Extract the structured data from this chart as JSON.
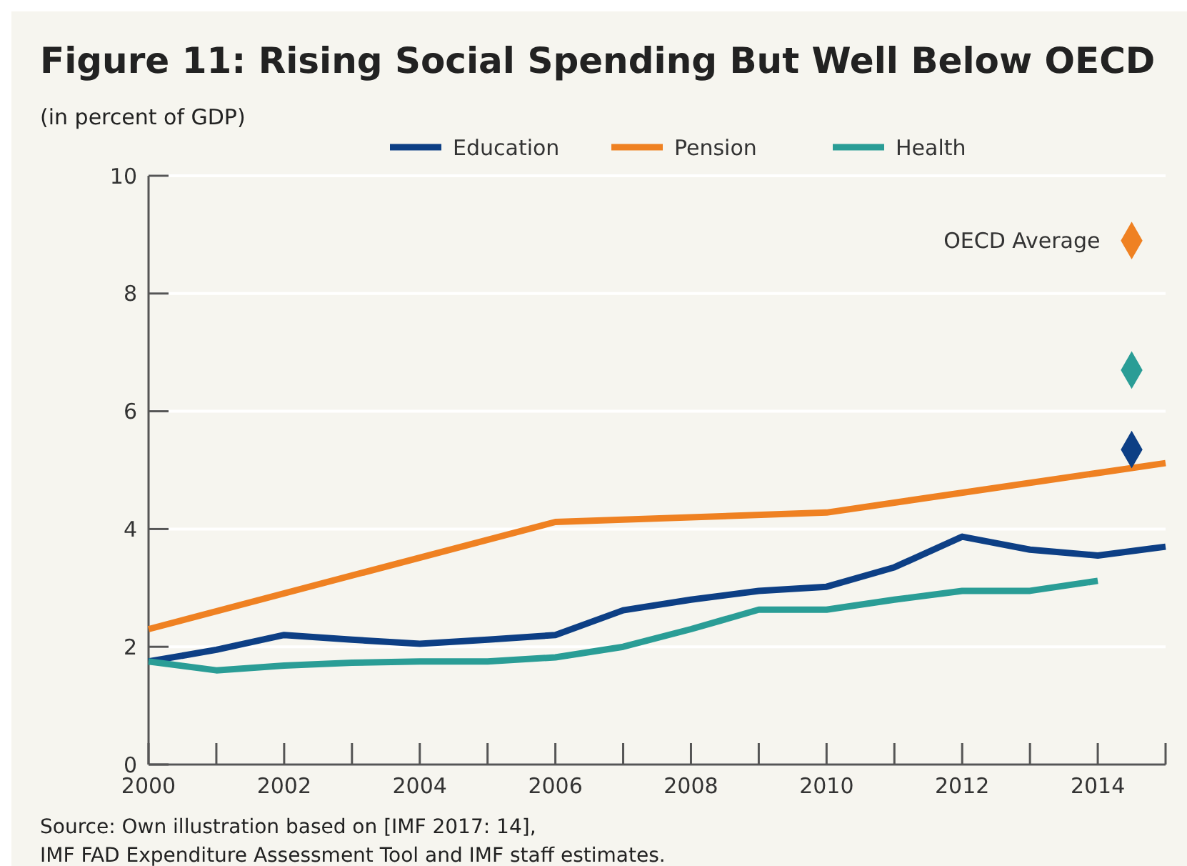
{
  "chart_data": {
    "type": "line",
    "title": "Figure 11: Rising Social Spending But Well Below OECD",
    "subtitle": "(in percent of GDP)",
    "x": [
      2000,
      2001,
      2002,
      2003,
      2004,
      2005,
      2006,
      2007,
      2008,
      2009,
      2010,
      2011,
      2012,
      2013,
      2014,
      2015
    ],
    "series": [
      {
        "name": "Education",
        "color": "#0d3f85",
        "values": [
          1.75,
          1.95,
          2.2,
          2.12,
          2.05,
          2.12,
          2.2,
          2.62,
          2.8,
          2.95,
          3.02,
          3.35,
          3.87,
          3.65,
          3.55,
          3.7
        ]
      },
      {
        "name": "Pension",
        "color": "#ef8122",
        "x": [
          2000,
          2006,
          2010,
          2015
        ],
        "values": [
          2.3,
          4.12,
          4.28,
          5.12
        ]
      },
      {
        "name": "Health",
        "color": "#2a9d96",
        "values": [
          1.75,
          1.6,
          1.68,
          1.73,
          1.75,
          1.75,
          1.82,
          2.0,
          2.3,
          2.63,
          2.63,
          2.8,
          2.95,
          2.95,
          3.12,
          null
        ]
      },
      {
        "type": "scatter",
        "marker": "diamond",
        "color": "#ef8122",
        "x": [
          2014.5
        ],
        "values": [
          8.9
        ]
      },
      {
        "type": "scatter",
        "marker": "diamond",
        "color": "#2a9d96",
        "x": [
          2014.5
        ],
        "values": [
          6.7
        ]
      },
      {
        "type": "scatter",
        "marker": "diamond",
        "color": "#0d3f85",
        "x": [
          2014.5
        ],
        "values": [
          5.35
        ]
      }
    ],
    "xlim": [
      2000,
      2015
    ],
    "xticks": [
      2000,
      {
        "value": 2001,
        "label": null
      },
      2002,
      {
        "value": 2003,
        "label": null
      },
      2004,
      {
        "value": 2005,
        "label": null
      },
      2006,
      {
        "value": 2007,
        "label": null
      },
      2008,
      {
        "value": 2009,
        "label": null
      },
      2010,
      {
        "value": 2011,
        "label": null
      },
      2012,
      {
        "value": 2013,
        "label": null
      },
      2014,
      {
        "value": 2015,
        "label": null
      }
    ],
    "ylim": [
      0,
      10
    ],
    "yticks": [
      0,
      2,
      4,
      6,
      8,
      10
    ],
    "grid": "y",
    "legend": "top",
    "line_style": "solid",
    "annotations": [
      {
        "text": "OECD Average",
        "x": 2014.5,
        "y": 8.9
      },
      "Source: Own illustration based on [IMF 2017: 14],",
      "IMF FAD Expenditure Assessment Tool and IMF staff estimates."
    ]
  }
}
